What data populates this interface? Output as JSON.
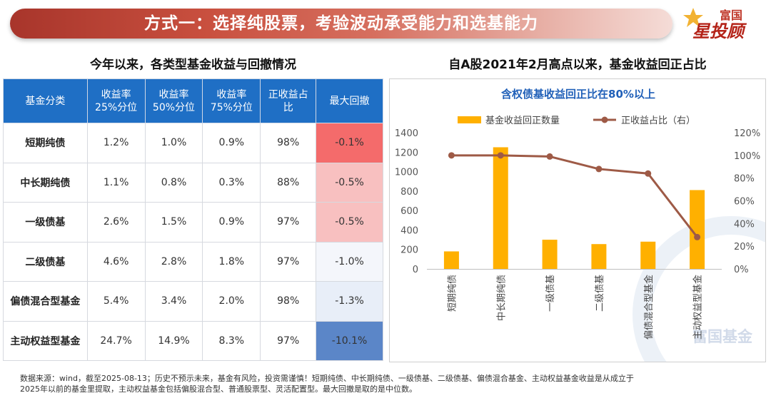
{
  "header": {
    "title": "方式一：选择纯股票，考验波动承受能力和选基能力",
    "logo_top": "富国",
    "logo_main": "星投顾"
  },
  "table_section": {
    "title": "今年以来，各类型基金收益与回撤情况",
    "columns": [
      "基金分类",
      "收益率\n25%分位",
      "收益率\n50%分位",
      "收益率\n75%分位",
      "正收益占\n比",
      "最大回撤"
    ],
    "rows": [
      {
        "category": "短期纯债",
        "p25": "1.2%",
        "p50": "1.0%",
        "p75": "0.9%",
        "positive": "98%",
        "drawdown": "-0.1%",
        "dd_color": "#f46b6b"
      },
      {
        "category": "中长期纯债",
        "p25": "1.1%",
        "p50": "0.8%",
        "p75": "0.3%",
        "positive": "88%",
        "drawdown": "-0.5%",
        "dd_color": "#f8c0c0"
      },
      {
        "category": "一级债基",
        "p25": "2.6%",
        "p50": "1.5%",
        "p75": "0.9%",
        "positive": "97%",
        "drawdown": "-0.5%",
        "dd_color": "#f8c0c0"
      },
      {
        "category": "二级债基",
        "p25": "4.6%",
        "p50": "2.8%",
        "p75": "1.8%",
        "positive": "97%",
        "drawdown": "-1.0%",
        "dd_color": "#f4f6fb"
      },
      {
        "category": "偏债混合型基金",
        "p25": "5.4%",
        "p50": "3.4%",
        "p75": "2.0%",
        "positive": "98%",
        "drawdown": "-1.3%",
        "dd_color": "#e8eef8"
      },
      {
        "category": "主动权益型基金",
        "p25": "24.7%",
        "p50": "14.9%",
        "p75": "8.3%",
        "positive": "97%",
        "drawdown": "-10.1%",
        "dd_color": "#5b86c8"
      }
    ]
  },
  "chart_section": {
    "title": "自A股2021年2月高点以来，基金收益回正占比"
  },
  "chart_data": {
    "type": "bar",
    "title": "含权债基收益回正比在80%以上",
    "categories": [
      "短期纯债",
      "中长期纯债",
      "一级债基",
      "二级债基",
      "偏债混合型基金",
      "主动权益型基金"
    ],
    "series": [
      {
        "name": "基金收益回正数量",
        "type": "bar",
        "axis": "left",
        "color": "#ffb000",
        "values": [
          180,
          1250,
          300,
          255,
          280,
          810
        ]
      },
      {
        "name": "正收益占比（右）",
        "type": "line",
        "axis": "right",
        "color": "#9e5a46",
        "values": [
          100,
          100,
          99,
          88,
          84,
          28
        ]
      }
    ],
    "y_left": {
      "min": 0,
      "max": 1400,
      "ticks": [
        "0",
        "200",
        "400",
        "600",
        "800",
        "1000",
        "1200",
        "1400"
      ]
    },
    "y_right": {
      "min": 0,
      "max": 120,
      "ticks": [
        "0%",
        "20%",
        "40%",
        "60%",
        "80%",
        "100%",
        "120%"
      ]
    },
    "legend_position": "top"
  },
  "watermark": "富国基金",
  "footnote": {
    "line1": "数据来源：wind，截至2025-08-13；历史不预示未来，基金有风险，投资需谨慎！短期纯债、中长期纯债、一级债基、二级债基、偏债混合基金、主动权益基金收益是从成立于",
    "line2": "2025年以前的基金里提取，主动权益基金包括偏股混合型、普通股票型、灵活配置型。最大回撤是取的是中位数。"
  }
}
